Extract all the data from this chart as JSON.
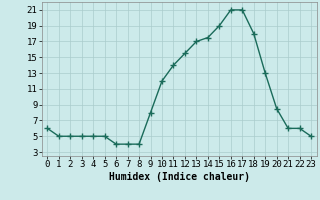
{
  "x": [
    0,
    1,
    2,
    3,
    4,
    5,
    6,
    7,
    8,
    9,
    10,
    11,
    12,
    13,
    14,
    15,
    16,
    17,
    18,
    19,
    20,
    21,
    22,
    23
  ],
  "y": [
    6,
    5,
    5,
    5,
    5,
    5,
    4,
    4,
    4,
    8,
    12,
    14,
    15.5,
    17,
    17.5,
    19,
    21,
    21,
    18,
    13,
    8.5,
    6,
    6,
    5
  ],
  "line_color": "#1a6b5a",
  "marker_color": "#1a6b5a",
  "bg_color": "#cceaea",
  "grid_color": "#aacccc",
  "xlabel": "Humidex (Indice chaleur)",
  "xlim": [
    -0.5,
    23.5
  ],
  "ylim": [
    2.5,
    22
  ],
  "yticks": [
    3,
    5,
    7,
    9,
    11,
    13,
    15,
    17,
    19,
    21
  ],
  "xtick_labels": [
    "0",
    "1",
    "2",
    "3",
    "4",
    "5",
    "6",
    "7",
    "8",
    "9",
    "10",
    "11",
    "12",
    "13",
    "14",
    "15",
    "16",
    "17",
    "18",
    "19",
    "20",
    "21",
    "22",
    "23"
  ],
  "label_fontsize": 7,
  "tick_fontsize": 6.5
}
